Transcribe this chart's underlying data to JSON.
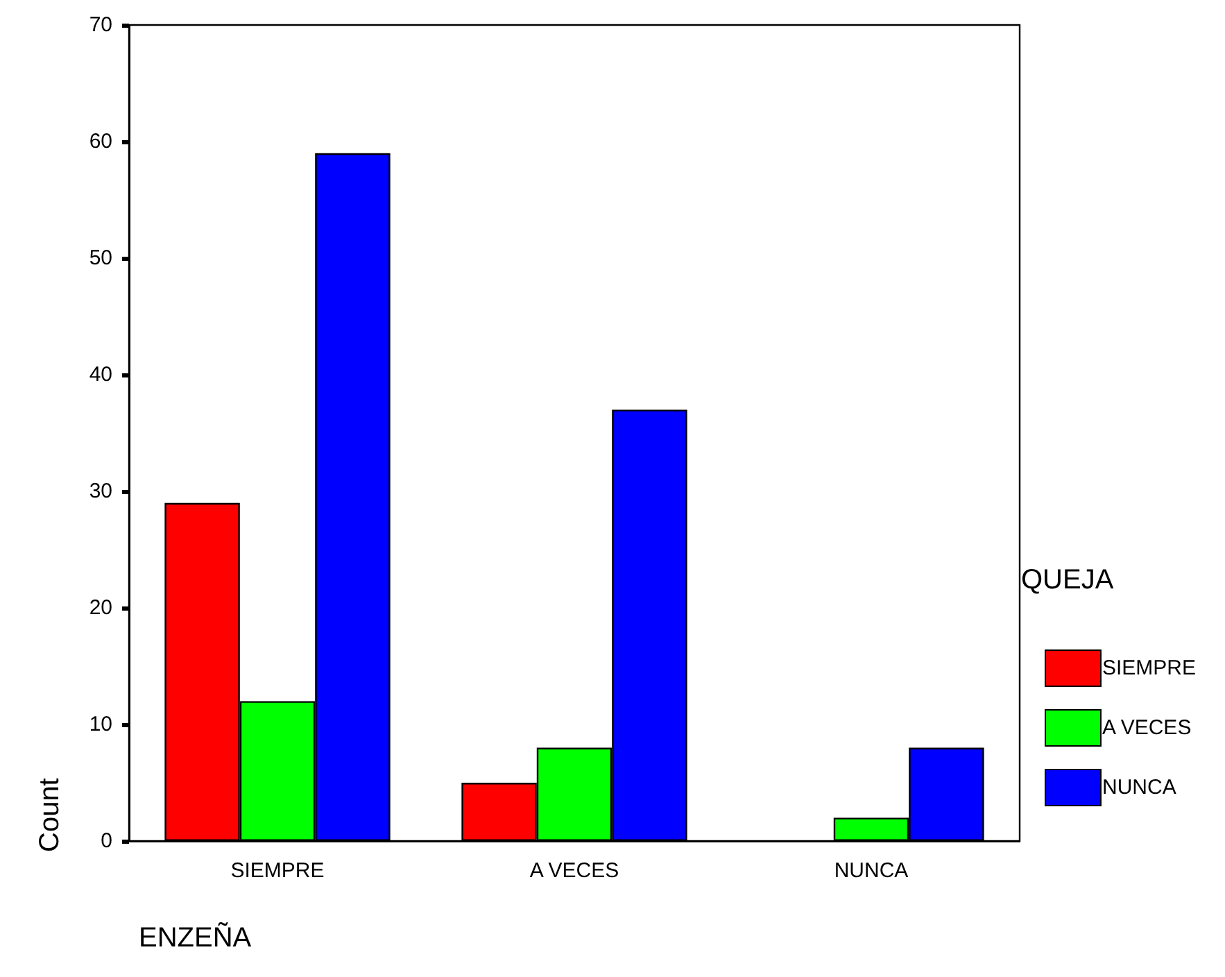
{
  "chart_data": {
    "type": "bar",
    "xlabel": "ENZEÑA",
    "ylabel": "Count",
    "legend_title": "QUEJA",
    "categories": [
      "SIEMPRE",
      "A VECES",
      "NUNCA"
    ],
    "series": [
      {
        "name": "SIEMPRE",
        "color": "#ff0000",
        "values": [
          29,
          5,
          0
        ]
      },
      {
        "name": "A VECES",
        "color": "#00ff00",
        "values": [
          12,
          8,
          2
        ]
      },
      {
        "name": "NUNCA",
        "color": "#0000ff",
        "values": [
          59,
          37,
          8
        ]
      }
    ],
    "ylim": [
      0,
      70
    ],
    "yticks": [
      0,
      10,
      20,
      30,
      40,
      50,
      60,
      70
    ],
    "grid": false,
    "legend": "right"
  }
}
